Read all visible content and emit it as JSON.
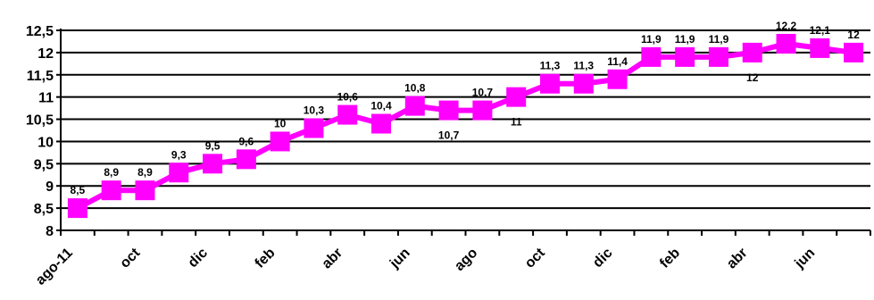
{
  "chart_data": {
    "type": "line",
    "title": "",
    "xlabel": "",
    "ylabel": "",
    "ylim": [
      8,
      12.5
    ],
    "y_ticks": [
      "8",
      "8,5",
      "9",
      "9,5",
      "10",
      "10,5",
      "11",
      "11,5",
      "12",
      "12,5"
    ],
    "grid": true,
    "legend": "none",
    "line_color": "#ff00ff",
    "marker": "square",
    "x_tick_labels": [
      {
        "index": 0,
        "label": "ago-11"
      },
      {
        "index": 2,
        "label": "oct"
      },
      {
        "index": 4,
        "label": "dic"
      },
      {
        "index": 6,
        "label": "feb"
      },
      {
        "index": 8,
        "label": "abr"
      },
      {
        "index": 10,
        "label": "jun"
      },
      {
        "index": 12,
        "label": "ago"
      },
      {
        "index": 14,
        "label": "oct"
      },
      {
        "index": 16,
        "label": "dic"
      },
      {
        "index": 18,
        "label": "feb"
      },
      {
        "index": 20,
        "label": "abr"
      },
      {
        "index": 22,
        "label": "jun"
      }
    ],
    "values": [
      8.5,
      8.9,
      8.9,
      9.3,
      9.5,
      9.6,
      10,
      10.3,
      10.6,
      10.4,
      10.8,
      10.7,
      10.7,
      11,
      11.3,
      11.3,
      11.4,
      11.9,
      11.9,
      11.9,
      12,
      12.2,
      12.1,
      12
    ],
    "data_labels": [
      "8,5",
      "8,9",
      "8,9",
      "9,3",
      "9,5",
      "9,6",
      "10",
      "10,3",
      "10,6",
      "10,4",
      "10,8",
      "10,7",
      "10,7",
      "11",
      "11,3",
      "11,3",
      "11,4",
      "11,9",
      "11,9",
      "11,9",
      "12",
      "12,2",
      "12,1",
      "12"
    ],
    "label_below": [
      11,
      13,
      20
    ]
  }
}
